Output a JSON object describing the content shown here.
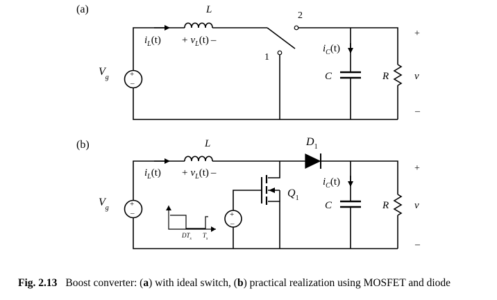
{
  "panel_a": {
    "label": "(a)",
    "inductor_label": "L",
    "inductor_current": "i",
    "inductor_current_sub": "L",
    "inductor_current_arg": "(t)",
    "inductor_voltage_plus": "+",
    "inductor_voltage": "v",
    "inductor_voltage_sub": "L",
    "inductor_voltage_arg": "(t)",
    "inductor_voltage_minus": "–",
    "switch_pos1": "1",
    "switch_pos2": "2",
    "cap_current": "i",
    "cap_current_sub": "C",
    "cap_current_arg": "(t)",
    "cap_label": "C",
    "res_label": "R",
    "out_plus": "+",
    "out_v": "v",
    "out_minus": "–",
    "source_label": "V",
    "source_sub": "g",
    "source_plus": "+",
    "source_minus": "–"
  },
  "panel_b": {
    "label": "(b)",
    "inductor_label": "L",
    "inductor_current": "i",
    "inductor_current_sub": "L",
    "inductor_current_arg": "(t)",
    "inductor_voltage_plus": "+",
    "inductor_voltage": "v",
    "inductor_voltage_sub": "L",
    "inductor_voltage_arg": "(t)",
    "inductor_voltage_minus": "–",
    "diode_label": "D",
    "diode_sub": "1",
    "mosfet_label": "Q",
    "mosfet_sub": "1",
    "cap_current": "i",
    "cap_current_sub": "C",
    "cap_current_arg": "(t)",
    "cap_label": "C",
    "res_label": "R",
    "out_plus": "+",
    "out_v": "v",
    "out_minus": "–",
    "source_label": "V",
    "source_sub": "g",
    "source_plus": "+",
    "source_minus": "–",
    "gate_source_plus": "+",
    "gate_source_minus": "–",
    "pwm_dt": "DT",
    "pwm_dt_sub": "s",
    "pwm_ts": "T",
    "pwm_ts_sub": "s"
  },
  "caption": {
    "fig_num": "Fig. 2.13",
    "pre": "Boost converter: (",
    "a": "a",
    "mid": ") with ideal switch, (",
    "b": "b",
    "post": ") practical realization using MOSFET and diode"
  }
}
